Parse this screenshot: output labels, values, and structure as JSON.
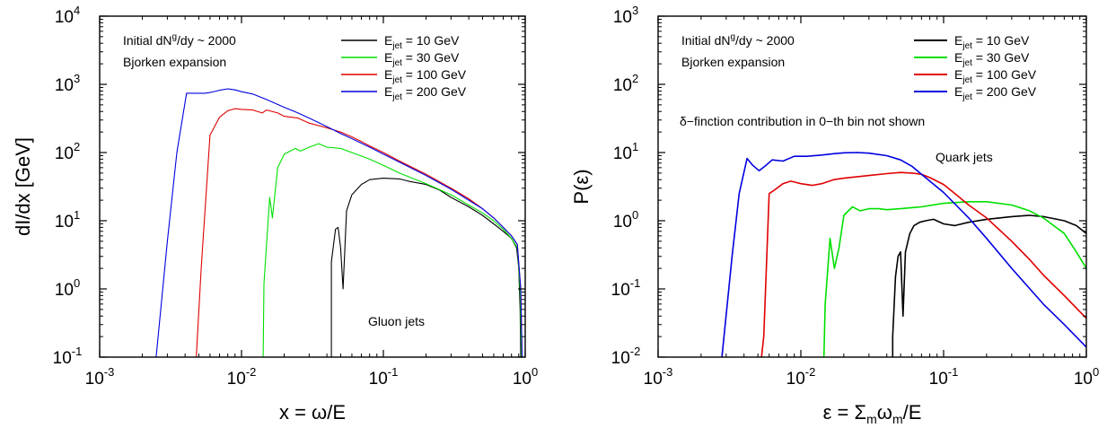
{
  "colors": {
    "10 GeV": "#000000",
    "30 GeV": "#00e000",
    "100 GeV": "#e00000",
    "200 GeV": "#0000e0"
  },
  "chart_data": [
    {
      "type": "line",
      "xscale": "log",
      "yscale": "log",
      "xlim": [
        0.001,
        1
      ],
      "ylim": [
        0.1,
        10000
      ],
      "xlabel": "x = ω/E",
      "ylabel": "dI/dx [GeV]",
      "annotations": {
        "line1_pre": "Initial dN",
        "line1_sup": "g",
        "line1_post": "/dy ~ 2000",
        "line2": "Bjorken expansion",
        "corner": "Gluon jets"
      },
      "legend": {
        "placement": "top-right",
        "prefix": "E",
        "sub": "jet"
      },
      "series": [
        {
          "name": "= 10 GeV",
          "color_key": "10 GeV",
          "x": [
            0.043,
            0.043,
            0.046,
            0.048,
            0.05,
            0.052,
            0.055,
            0.06,
            0.07,
            0.08,
            0.1,
            0.13,
            0.15,
            0.2,
            0.25,
            0.3,
            0.4,
            0.5,
            0.6,
            0.7,
            0.8,
            0.87,
            0.9,
            0.92,
            0.93
          ],
          "y": [
            0.1,
            2.5,
            7.5,
            8,
            4,
            1,
            14,
            24,
            34,
            40,
            42,
            41,
            38,
            34,
            28,
            22,
            16,
            12,
            9,
            7,
            5.5,
            4,
            2,
            0.5,
            0.1
          ]
        },
        {
          "name": "= 30 GeV",
          "color_key": "30 GeV",
          "x": [
            0.0142,
            0.0144,
            0.0158,
            0.0165,
            0.018,
            0.02,
            0.024,
            0.026,
            0.03,
            0.035,
            0.04,
            0.05,
            0.06,
            0.08,
            0.1,
            0.13,
            0.2,
            0.3,
            0.4,
            0.5,
            0.6,
            0.7,
            0.8,
            0.88,
            0.92,
            0.94
          ],
          "y": [
            0.1,
            1.2,
            22,
            11,
            60,
            95,
            115,
            105,
            120,
            135,
            120,
            115,
            100,
            80,
            65,
            50,
            35,
            24,
            17,
            13,
            10,
            7.5,
            5.5,
            4,
            1,
            0.1
          ]
        },
        {
          "name": "= 100 GeV",
          "color_key": "100 GeV",
          "x": [
            0.0048,
            0.0052,
            0.006,
            0.007,
            0.008,
            0.009,
            0.01,
            0.012,
            0.014,
            0.015,
            0.018,
            0.02,
            0.025,
            0.03,
            0.04,
            0.05,
            0.06,
            0.07,
            0.08,
            0.1,
            0.13,
            0.2,
            0.3,
            0.4,
            0.5,
            0.6,
            0.7,
            0.8,
            0.88,
            0.93,
            0.95
          ],
          "y": [
            0.1,
            2,
            180,
            330,
            410,
            440,
            430,
            420,
            380,
            420,
            380,
            340,
            320,
            270,
            230,
            200,
            170,
            145,
            125,
            100,
            75,
            48,
            30,
            21,
            15,
            11,
            8,
            6,
            4.5,
            1,
            0.1
          ]
        },
        {
          "name": "= 200 GeV",
          "color_key": "200 GeV",
          "x": [
            0.0025,
            0.003,
            0.0035,
            0.0041,
            0.0055,
            0.006,
            0.007,
            0.008,
            0.009,
            0.01,
            0.012,
            0.015,
            0.02,
            0.025,
            0.03,
            0.04,
            0.05,
            0.06,
            0.08,
            0.1,
            0.13,
            0.2,
            0.3,
            0.4,
            0.5,
            0.6,
            0.7,
            0.8,
            0.88,
            0.93,
            0.95
          ],
          "y": [
            0.1,
            5,
            100,
            740,
            740,
            760,
            820,
            860,
            830,
            780,
            720,
            600,
            460,
            380,
            320,
            240,
            190,
            160,
            120,
            95,
            72,
            46,
            29,
            20,
            15,
            11,
            8,
            6,
            4.5,
            1,
            0.1
          ]
        }
      ]
    },
    {
      "type": "line",
      "xscale": "log",
      "yscale": "log",
      "xlim": [
        0.001,
        1
      ],
      "ylim": [
        0.01,
        1000
      ],
      "xlabel": "ε = Σmωm/E",
      "xlabel_parts": [
        "ε = Σ",
        "m",
        "ω",
        "m",
        "/E"
      ],
      "ylabel": "P(ε)",
      "annotations": {
        "line1_pre": "Initial dN",
        "line1_sup": "g",
        "line1_post": "/dy ~ 2000",
        "line2": "Bjorken expansion",
        "note": "δ−finction contribution in 0−th bin not shown",
        "corner": "Quark jets"
      },
      "legend": {
        "placement": "top-right",
        "prefix": "E",
        "sub": "jet"
      },
      "series": [
        {
          "name": "= 10 GeV",
          "color_key": "10 GeV",
          "x": [
            0.044,
            0.044,
            0.046,
            0.048,
            0.05,
            0.052,
            0.054,
            0.058,
            0.062,
            0.068,
            0.075,
            0.085,
            0.1,
            0.12,
            0.15,
            0.2,
            0.3,
            0.4,
            0.5,
            0.7,
            0.85,
            1.0
          ],
          "y": [
            0.01,
            0.02,
            0.15,
            0.3,
            0.35,
            0.04,
            0.35,
            0.65,
            0.85,
            0.95,
            1.0,
            1.05,
            0.9,
            0.85,
            0.95,
            1.05,
            1.15,
            1.2,
            1.15,
            1.0,
            0.85,
            0.65
          ]
        },
        {
          "name": "= 30 GeV",
          "color_key": "30 GeV",
          "x": [
            0.0145,
            0.0148,
            0.016,
            0.0172,
            0.0185,
            0.02,
            0.023,
            0.026,
            0.03,
            0.035,
            0.04,
            0.05,
            0.07,
            0.1,
            0.15,
            0.2,
            0.3,
            0.4,
            0.5,
            0.7,
            0.85,
            1.0
          ],
          "y": [
            0.01,
            0.06,
            0.55,
            0.2,
            0.4,
            1.2,
            1.6,
            1.4,
            1.5,
            1.5,
            1.45,
            1.5,
            1.6,
            1.8,
            1.9,
            1.9,
            1.7,
            1.4,
            1.1,
            0.65,
            0.35,
            0.2
          ]
        },
        {
          "name": "= 100 GeV",
          "color_key": "100 GeV",
          "x": [
            0.0053,
            0.0055,
            0.006,
            0.0065,
            0.0075,
            0.0085,
            0.01,
            0.012,
            0.014,
            0.017,
            0.02,
            0.03,
            0.04,
            0.05,
            0.06,
            0.07,
            0.08,
            0.1,
            0.12,
            0.15,
            0.2,
            0.3,
            0.4,
            0.5,
            0.7,
            1.0
          ],
          "y": [
            0.01,
            0.02,
            2.5,
            2.8,
            3.5,
            3.8,
            3.5,
            3.3,
            3.5,
            4.0,
            4.2,
            4.6,
            4.9,
            5.1,
            5.0,
            4.8,
            4.3,
            3.4,
            2.5,
            1.7,
            1.1,
            0.5,
            0.27,
            0.16,
            0.08,
            0.037
          ]
        },
        {
          "name": "= 200 GeV",
          "color_key": "200 GeV",
          "x": [
            0.0028,
            0.0033,
            0.0037,
            0.0042,
            0.0046,
            0.0051,
            0.0057,
            0.0063,
            0.0075,
            0.009,
            0.011,
            0.014,
            0.017,
            0.02,
            0.025,
            0.03,
            0.04,
            0.05,
            0.06,
            0.07,
            0.1,
            0.15,
            0.2,
            0.3,
            0.5,
            0.7,
            1.0
          ],
          "y": [
            0.01,
            0.3,
            2.5,
            8.2,
            6.5,
            5.4,
            6.5,
            7.8,
            7.5,
            8.8,
            8.8,
            9.2,
            9.6,
            9.9,
            10,
            9.8,
            9.0,
            7.8,
            6.3,
            4.8,
            2.6,
            1.1,
            0.55,
            0.2,
            0.06,
            0.03,
            0.014
          ]
        }
      ]
    }
  ]
}
